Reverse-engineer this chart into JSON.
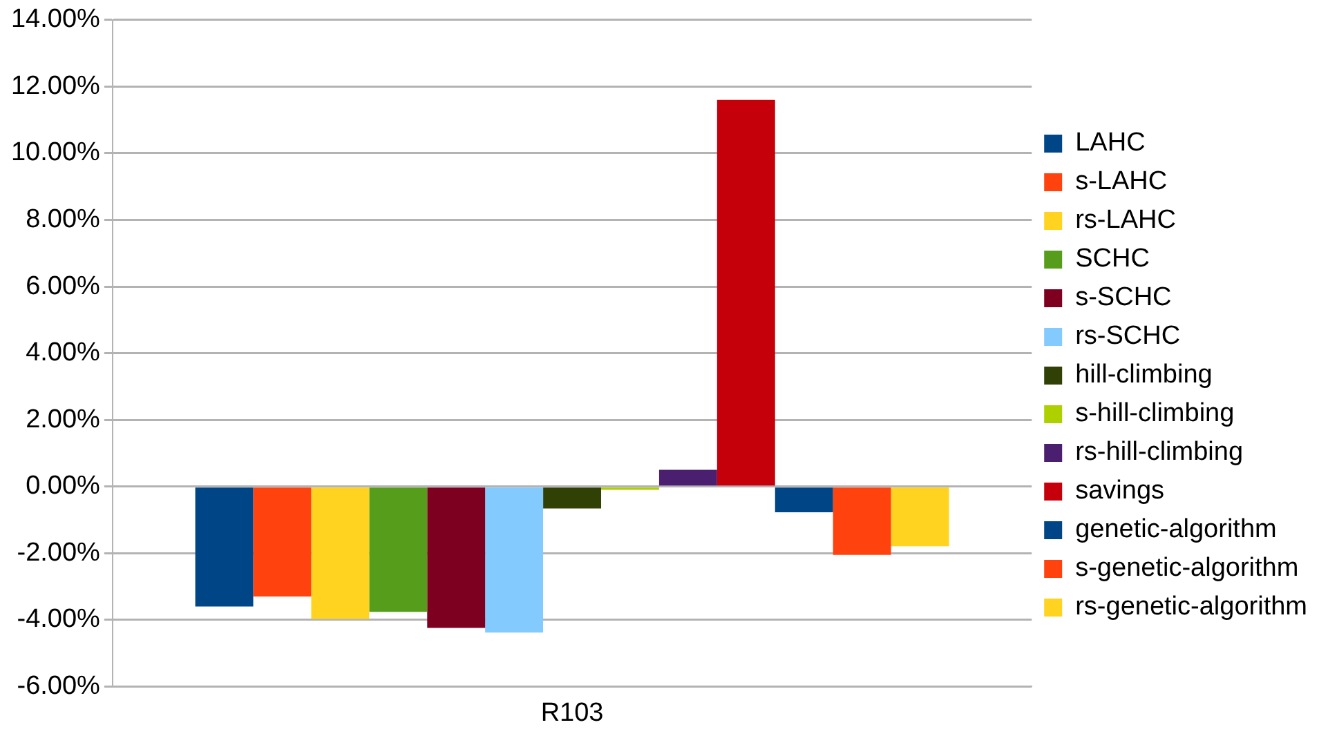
{
  "chart_data": {
    "type": "bar",
    "categories": [
      "R103"
    ],
    "series": [
      {
        "name": "LAHC",
        "color": "#004586",
        "values": [
          -3.6
        ]
      },
      {
        "name": "s-LAHC",
        "color": "#ff420e",
        "values": [
          -3.3
        ]
      },
      {
        "name": "rs-LAHC",
        "color": "#ffd320",
        "values": [
          -3.97
        ]
      },
      {
        "name": "SCHC",
        "color": "#579d1c",
        "values": [
          -3.76
        ]
      },
      {
        "name": "s-SCHC",
        "color": "#7e0021",
        "values": [
          -4.24
        ]
      },
      {
        "name": "rs-SCHC",
        "color": "#83caff",
        "values": [
          -4.38
        ]
      },
      {
        "name": "hill-climbing",
        "color": "#314004",
        "values": [
          -0.66
        ]
      },
      {
        "name": "s-hill-climbing",
        "color": "#aecf00",
        "values": [
          -0.1
        ]
      },
      {
        "name": "rs-hill-climbing",
        "color": "#4b1f6f",
        "values": [
          0.5
        ]
      },
      {
        "name": "savings",
        "color": "#c5000b",
        "values": [
          11.6
        ]
      },
      {
        "name": "genetic-algorithm",
        "color": "#004586",
        "values": [
          -0.77
        ]
      },
      {
        "name": "s-genetic-algorithm",
        "color": "#ff420e",
        "values": [
          -2.05
        ]
      },
      {
        "name": "rs-genetic-algorithm",
        "color": "#ffd320",
        "values": [
          -1.79
        ]
      }
    ],
    "ylim": [
      -6,
      14
    ],
    "yticks": [
      {
        "value": -6,
        "label": "-6.00%"
      },
      {
        "value": -4,
        "label": "-4.00%"
      },
      {
        "value": -2,
        "label": "-2.00%"
      },
      {
        "value": 0,
        "label": "0.00%"
      },
      {
        "value": 2,
        "label": "2.00%"
      },
      {
        "value": 4,
        "label": "4.00%"
      },
      {
        "value": 6,
        "label": "6.00%"
      },
      {
        "value": 8,
        "label": "8.00%"
      },
      {
        "value": 10,
        "label": "10.00%"
      },
      {
        "value": 12,
        "label": "12.00%"
      },
      {
        "value": 14,
        "label": "14.00%"
      }
    ],
    "grid": "y",
    "legend": "right"
  }
}
